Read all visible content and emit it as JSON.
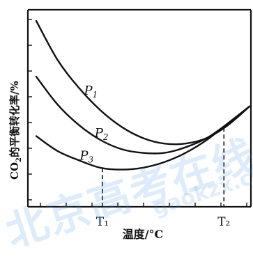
{
  "watermark": {
    "text": "北京高考在线",
    "url_text": "gaokzx.com"
  },
  "chart_data": {
    "type": "line",
    "xlabel": "温度/°C",
    "ylabel_main": "CO",
    "ylabel_sub": "2",
    "ylabel_rest": "的平衡转化率/%",
    "grid": false,
    "x_ticks": [
      "T₁",
      "T₂"
    ],
    "x_tick_labels": [
      "T1",
      "T2"
    ],
    "series": [
      {
        "name": "P₁",
        "label_main": "P",
        "label_sub": "1",
        "points": [
          [
            0.0,
            100
          ],
          [
            0.1,
            79
          ],
          [
            0.2,
            64
          ],
          [
            0.3,
            52
          ],
          [
            0.4,
            43
          ],
          [
            0.5,
            37
          ],
          [
            0.6,
            34
          ],
          [
            0.7,
            34
          ],
          [
            0.8,
            37
          ],
          [
            0.9,
            44
          ],
          [
            1.0,
            54
          ]
        ]
      },
      {
        "name": "P₂",
        "label_main": "P",
        "label_sub": "2",
        "points": [
          [
            0.0,
            70
          ],
          [
            0.1,
            55
          ],
          [
            0.2,
            44
          ],
          [
            0.3,
            36
          ],
          [
            0.4,
            31
          ],
          [
            0.5,
            29
          ],
          [
            0.6,
            29
          ],
          [
            0.7,
            32
          ],
          [
            0.8,
            37
          ],
          [
            0.9,
            45
          ],
          [
            1.0,
            54
          ]
        ]
      },
      {
        "name": "P₃",
        "label_main": "P",
        "label_sub": "3",
        "points": [
          [
            0.0,
            38
          ],
          [
            0.1,
            30
          ],
          [
            0.2,
            25
          ],
          [
            0.3,
            21
          ],
          [
            0.4,
            20
          ],
          [
            0.5,
            21
          ],
          [
            0.6,
            24
          ],
          [
            0.7,
            29
          ],
          [
            0.8,
            36
          ],
          [
            0.9,
            45
          ],
          [
            1.0,
            54
          ]
        ]
      }
    ],
    "T1_value": 0.31,
    "T2_value": 0.88
  }
}
